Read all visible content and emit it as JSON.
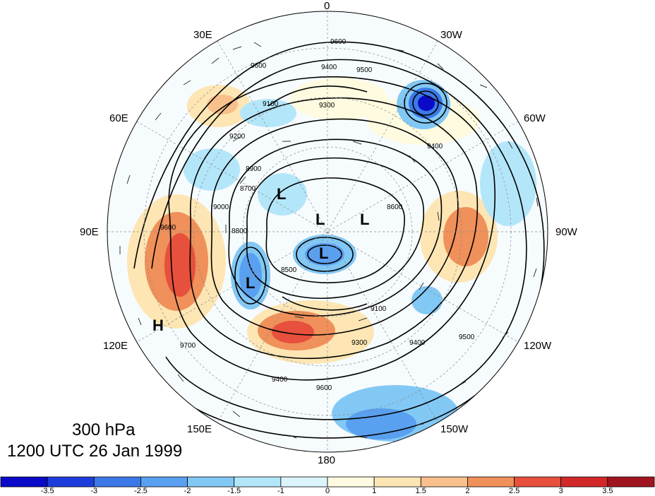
{
  "title": {
    "level": "300 hPa",
    "datetime": "1200 UTC 26 Jan 1999"
  },
  "longitude_labels": {
    "top": "0",
    "bottom": "180",
    "lon_30e": "30E",
    "lon_30w": "30W",
    "lon_60e": "60E",
    "lon_60w": "60W",
    "lon_90e": "90E",
    "lon_90w": "90W",
    "lon_120e": "120E",
    "lon_120w": "120W",
    "lon_150e": "150E",
    "lon_150w": "150W"
  },
  "pressure_centers": [
    "L",
    "L",
    "L",
    "L",
    "L",
    "H"
  ],
  "contour_labels": [
    "9600",
    "9400",
    "9500",
    "9300",
    "9100",
    "9200",
    "8900",
    "8700",
    "8800",
    "9000",
    "8500",
    "8600",
    "9700"
  ],
  "colorbar": {
    "ticks": [
      "-3.5",
      "-3",
      "-2.5",
      "-2",
      "-1.5",
      "-1",
      "0",
      "1",
      "1.5",
      "2",
      "2.5",
      "3",
      "3.5"
    ],
    "colors": [
      "#0a0ac8",
      "#1e3cdc",
      "#3c78e6",
      "#5aa0f0",
      "#82c8f5",
      "#b4e6fa",
      "#dcf5fc",
      "#fffbe0",
      "#fde6b4",
      "#f8c08a",
      "#f0905a",
      "#e6503c",
      "#d22828",
      "#a01420"
    ]
  }
}
